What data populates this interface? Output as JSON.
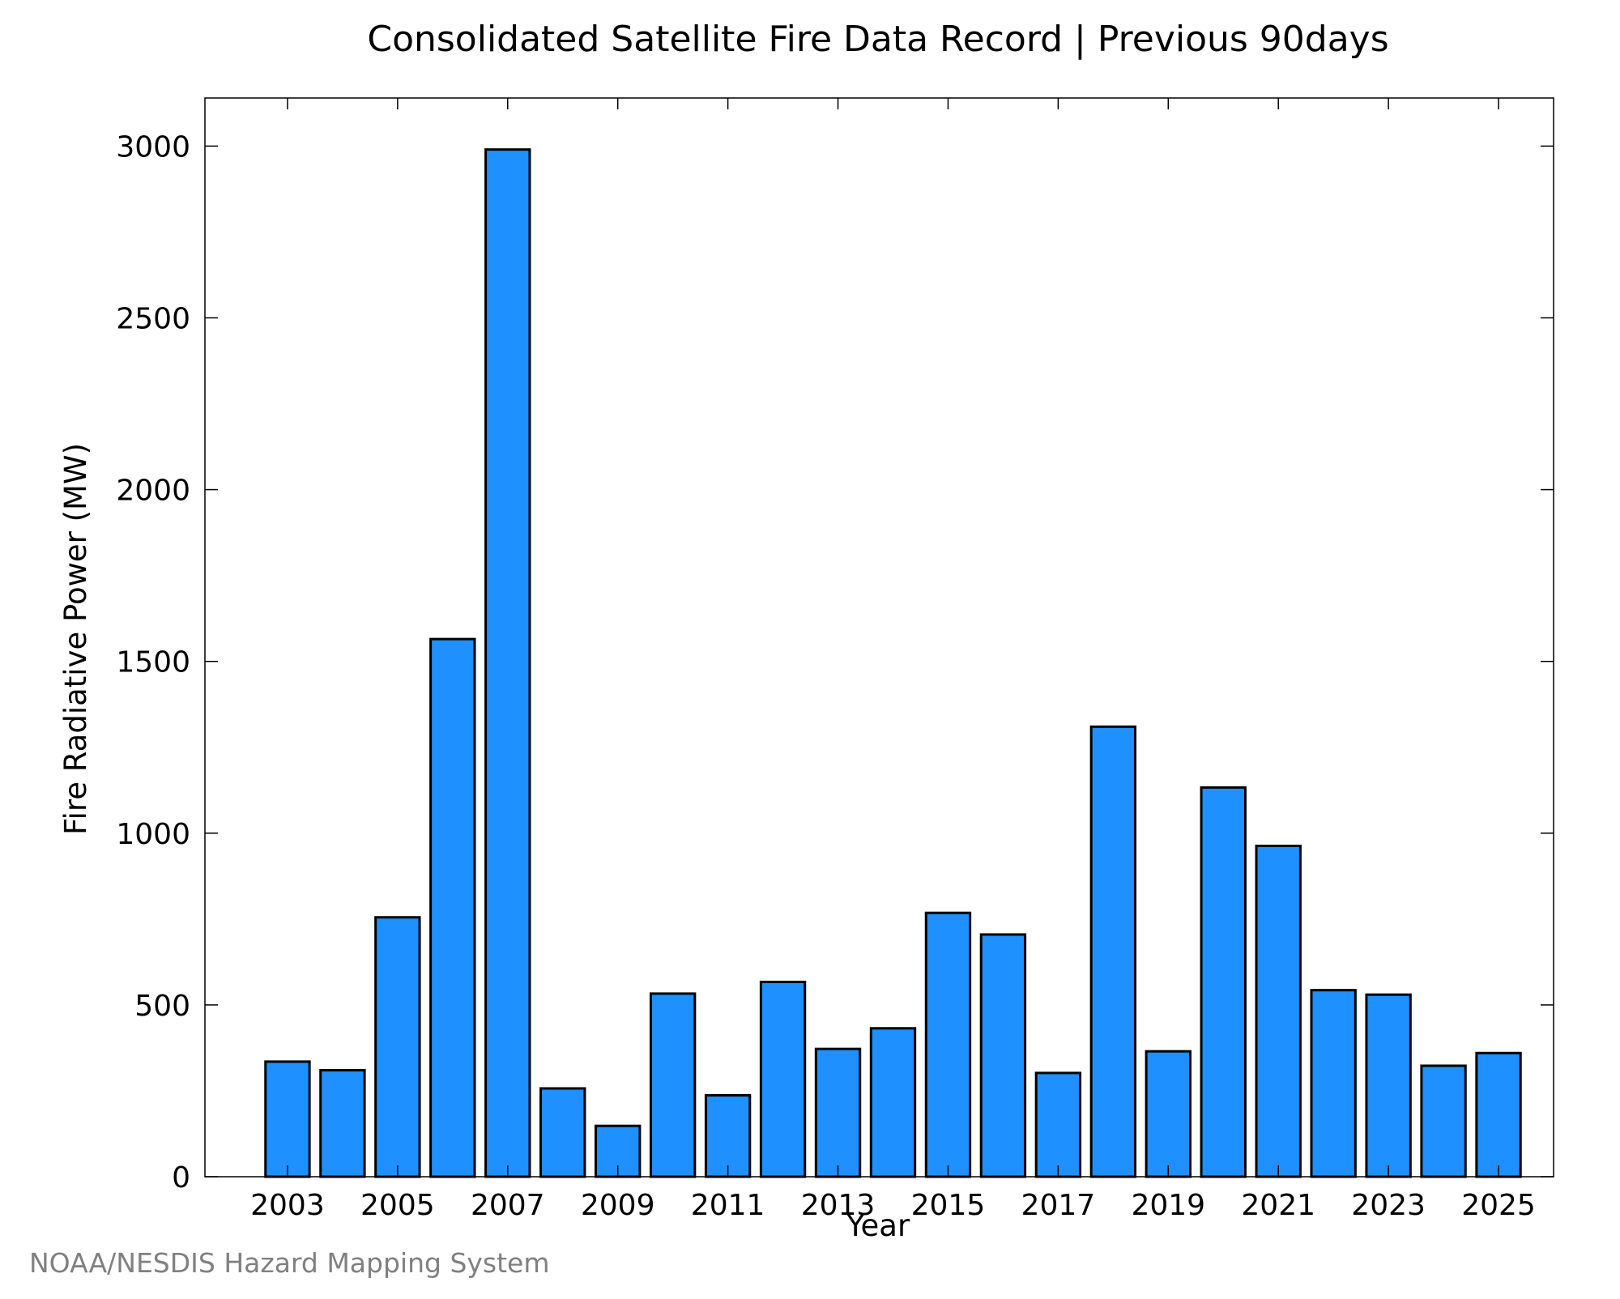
{
  "chart_data": {
    "type": "bar",
    "title": "Consolidated Satellite Fire Data Record | Previous 90days",
    "xlabel": "Year",
    "ylabel": "Fire Radiative Power (MW)",
    "categories": [
      "2003",
      "2004",
      "2005",
      "2006",
      "2007",
      "2008",
      "2009",
      "2010",
      "2011",
      "2012",
      "2013",
      "2014",
      "2015",
      "2016",
      "2017",
      "2018",
      "2019",
      "2020",
      "2021",
      "2022",
      "2023",
      "2024",
      "2025"
    ],
    "values": [
      335,
      310,
      755,
      1565,
      2990,
      257,
      148,
      533,
      237,
      567,
      372,
      432,
      768,
      705,
      302,
      1310,
      365,
      1133,
      963,
      543,
      530,
      323,
      360
    ],
    "ylim": [
      0,
      3140
    ],
    "xlim": [
      2001.5,
      2026
    ],
    "yticks": [
      0,
      500,
      1000,
      1500,
      2000,
      2500,
      3000
    ],
    "xtick_labels": [
      "2003",
      "2005",
      "2007",
      "2009",
      "2011",
      "2013",
      "2015",
      "2017",
      "2019",
      "2021",
      "2023",
      "2025"
    ],
    "grid": false,
    "legend": "none",
    "bar_color": "#1E90FF"
  },
  "credit": "NOAA/NESDIS Hazard Mapping System"
}
